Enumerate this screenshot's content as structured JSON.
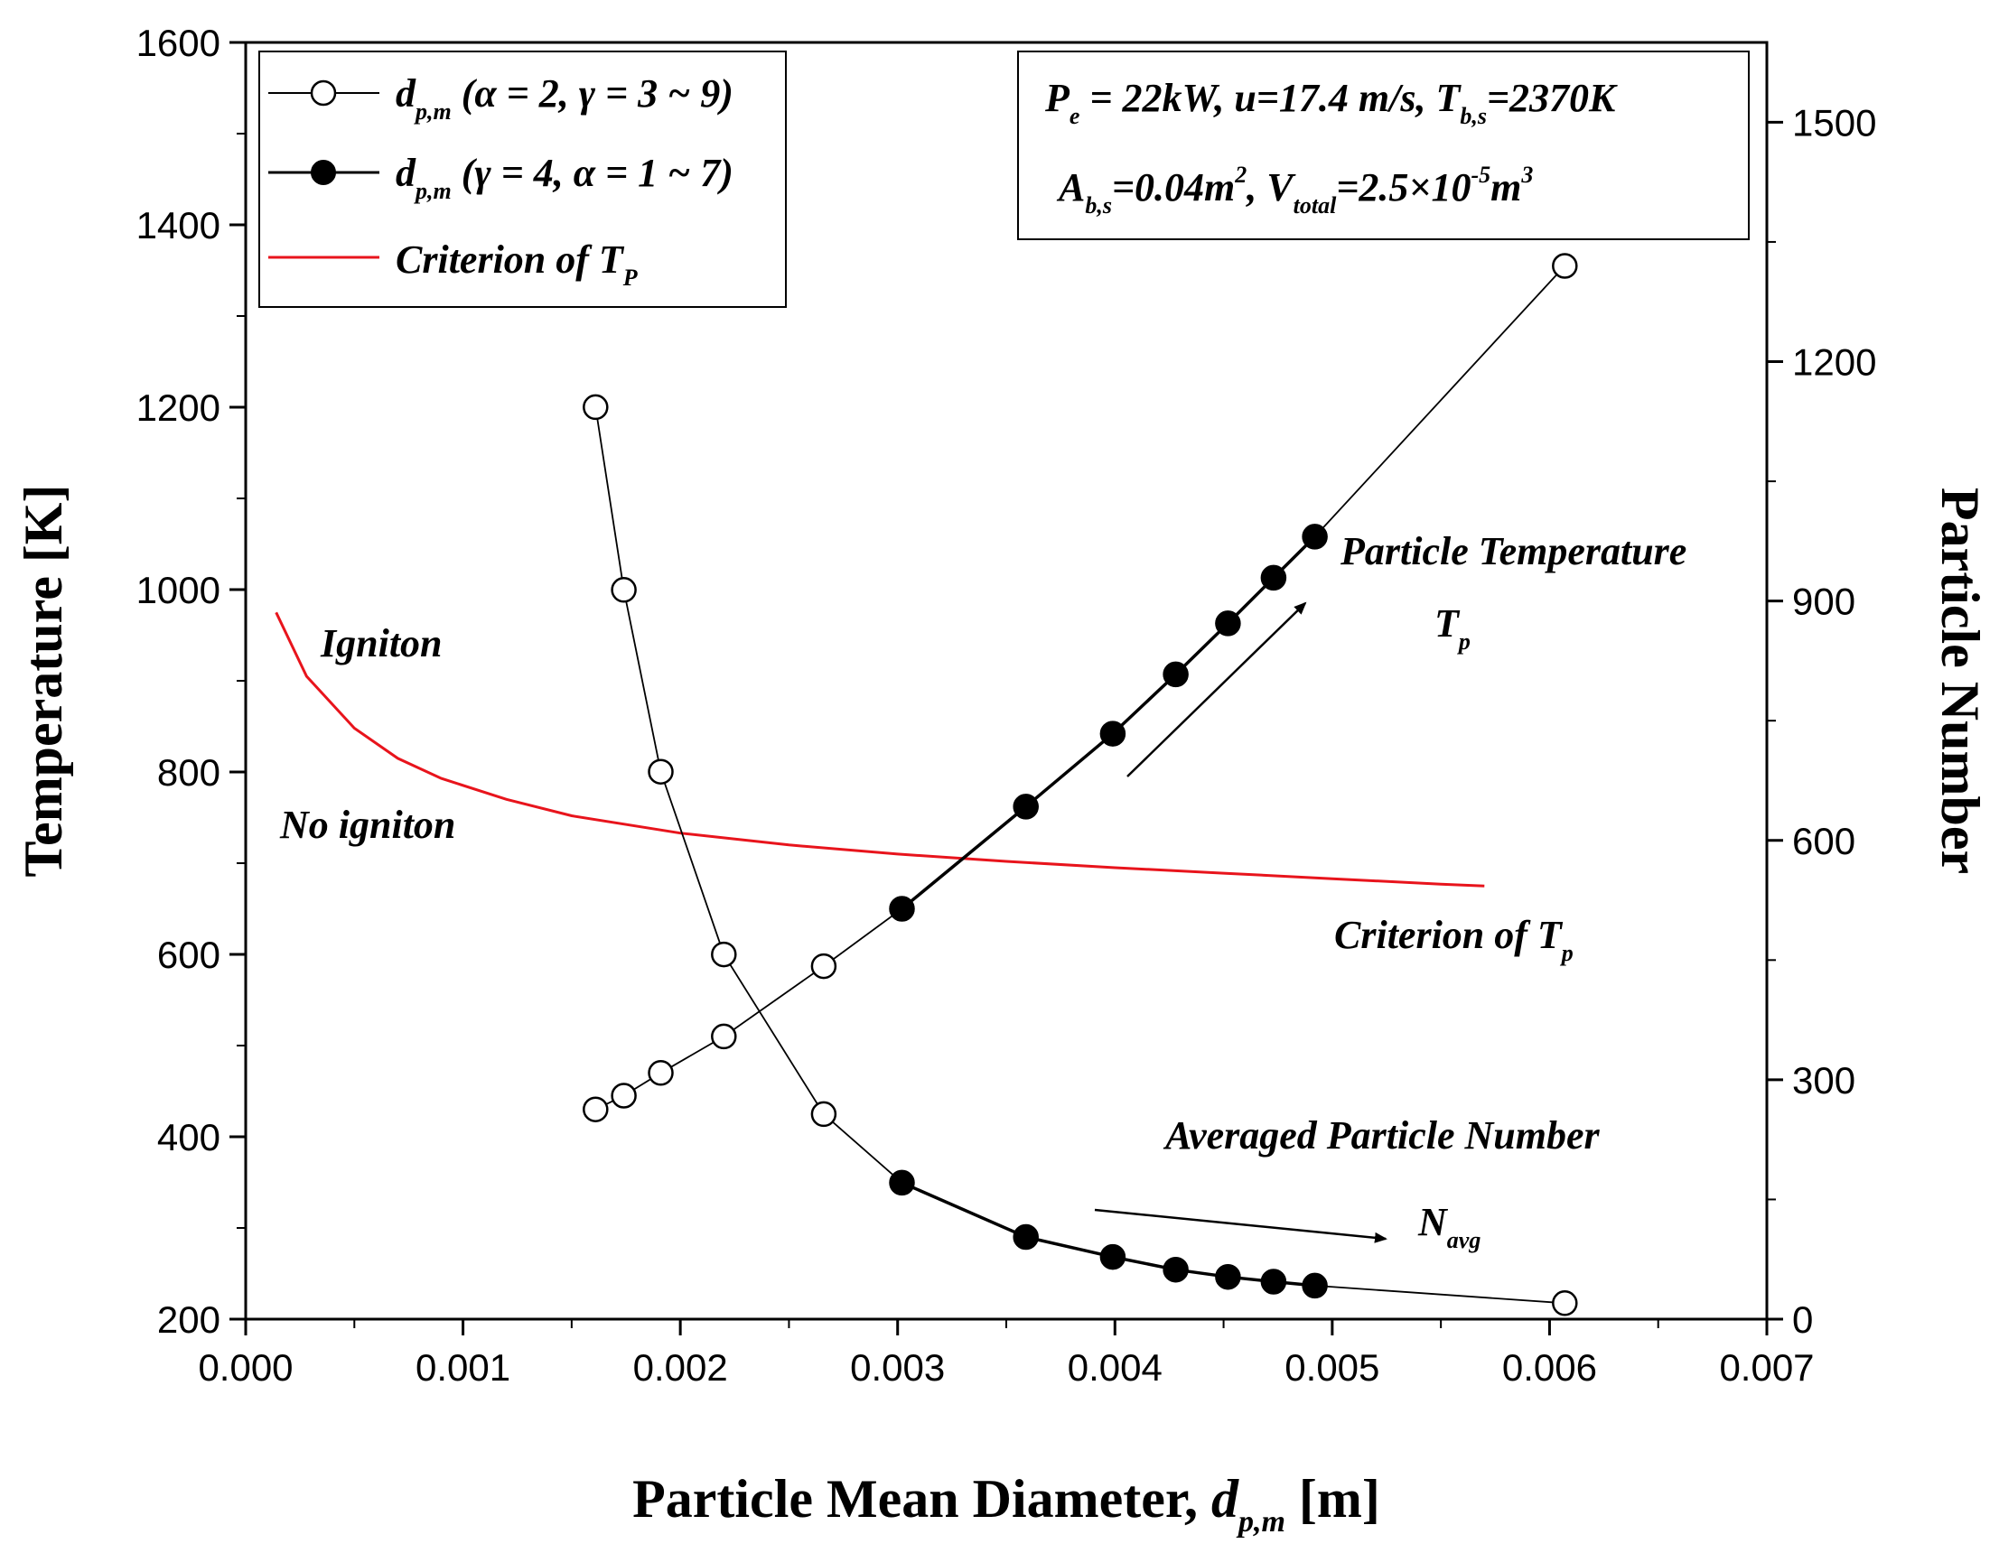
{
  "chart_data": {
    "type": "line",
    "x_axis": {
      "label_main": "Particle Mean Diameter, ",
      "label_var": "d",
      "label_sub": "p,m",
      "label_unit": " [m]",
      "xlim": [
        0.0,
        0.007
      ],
      "ticks": [
        "0.000",
        "0.001",
        "0.002",
        "0.003",
        "0.004",
        "0.005",
        "0.006",
        "0.007"
      ]
    },
    "y_left": {
      "label": "Temperature [K]",
      "ylim": [
        200,
        1600
      ],
      "ticks": [
        "200",
        "400",
        "600",
        "800",
        "1000",
        "1200",
        "1400",
        "1600"
      ]
    },
    "y_right": {
      "label": "Particle Number",
      "ylim": [
        0,
        1600
      ],
      "ticks": [
        "0",
        "300",
        "600",
        "900",
        "1200",
        "1500"
      ]
    },
    "series": [
      {
        "name": "Particle Temperature (α = 2, γ = 3 ~ 9)",
        "axis": "left",
        "marker": "open",
        "x": [
          0.00161,
          0.00174,
          0.00191,
          0.0022,
          0.00266,
          0.00302,
          0.00359,
          0.00399,
          0.00428,
          0.00452,
          0.00473,
          0.00492,
          0.00607
        ],
        "y": [
          430,
          445,
          470,
          510,
          587,
          650,
          762,
          842,
          907,
          963,
          1013,
          1058,
          1355
        ]
      },
      {
        "name": "Particle Temperature (γ = 4, α = 1 ~ 7)",
        "axis": "left",
        "marker": "filled",
        "x": [
          0.00302,
          0.00359,
          0.00399,
          0.00428,
          0.00452,
          0.00473,
          0.00492
        ],
        "y": [
          650,
          762,
          842,
          907,
          963,
          1013,
          1058
        ]
      },
      {
        "name": "Averaged Particle Number (α = 2, γ = 3 ~ 9)",
        "axis": "right",
        "marker": "open",
        "x": [
          0.00161,
          0.00174,
          0.00191,
          0.0022,
          0.00266,
          0.00302,
          0.00359,
          0.00399,
          0.00428,
          0.00452,
          0.00473,
          0.00492,
          0.00607
        ],
        "y": [
          1143,
          914,
          686,
          457,
          257,
          171,
          103,
          78,
          62,
          53,
          47,
          42,
          20
        ]
      },
      {
        "name": "Averaged Particle Number (γ = 4, α = 1 ~ 7)",
        "axis": "right",
        "marker": "filled",
        "x": [
          0.00302,
          0.00359,
          0.00399,
          0.00428,
          0.00452,
          0.00473,
          0.00492
        ],
        "y": [
          171,
          103,
          78,
          62,
          53,
          47,
          42
        ]
      },
      {
        "name": "Criterion of Tp",
        "axis": "left",
        "marker": "none",
        "color": "#e8141c",
        "x": [
          0.00014,
          0.00028,
          0.0005,
          0.0007,
          0.0009,
          0.0012,
          0.0015,
          0.002,
          0.0025,
          0.003,
          0.0035,
          0.004,
          0.0045,
          0.005,
          0.0055,
          0.0057
        ],
        "y": [
          975,
          905,
          848,
          815,
          793,
          770,
          752,
          733,
          720,
          710,
          702,
          695,
          689,
          683,
          677,
          675
        ]
      }
    ],
    "legend": {
      "position": "top-left",
      "items": [
        {
          "var": "d",
          "sub": "p,m",
          "params": " (α = 2, γ = 3 ~ 9)",
          "marker": "open"
        },
        {
          "var": "d",
          "sub": "p,m",
          "params": " (γ = 4,  α = 1 ~ 7)",
          "marker": "filled"
        },
        {
          "text": "Criterion of T",
          "sub": "P",
          "marker": "red-line"
        }
      ]
    },
    "info_box": {
      "position": "top-right",
      "line1": {
        "p": "P",
        "p_sub": "e",
        "rest1": " = 22kW, u=17.4 m/s, T",
        "t_sub": "b,s",
        "rest2": "=2370K"
      },
      "line2": {
        "a": "A",
        "a_sub": "b,s",
        "rest1": "=0.04m",
        "sup1": "2",
        "rest2": ", V",
        "v_sub": "total",
        "rest3": "=2.5×10",
        "sup2": "-5",
        "rest4": "m",
        "sup3": "3"
      }
    },
    "annotations": {
      "ignition": "Igniton",
      "no_ignition": "No igniton",
      "particle_temperature": "Particle Temperature",
      "tp_symbol": "T",
      "tp_sub": "p",
      "criterion": "Criterion of T",
      "criterion_sub": "p",
      "averaged_number": "Averaged Particle Number",
      "navg_symbol": "N",
      "navg_sub": "avg"
    }
  }
}
